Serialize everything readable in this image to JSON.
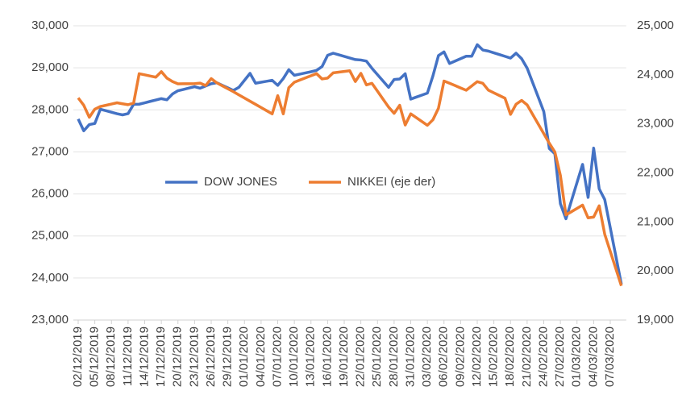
{
  "chart_data": {
    "type": "line",
    "categories": [
      "02/12/2019",
      null,
      null,
      "05/12/2019",
      null,
      null,
      "08/12/2019",
      null,
      null,
      "11/12/2019",
      null,
      null,
      "14/12/2019",
      null,
      null,
      "17/12/2019",
      null,
      null,
      "20/12/2019",
      null,
      null,
      "23/12/2019",
      null,
      null,
      "26/12/2019",
      null,
      null,
      "29/12/2019",
      null,
      null,
      "01/01/2020",
      null,
      null,
      "04/01/2020",
      null,
      null,
      "07/01/2020",
      null,
      null,
      "10/01/2020",
      null,
      null,
      "13/01/2020",
      null,
      null,
      "16/01/2020",
      null,
      null,
      "19/01/2020",
      null,
      null,
      "22/01/2020",
      null,
      null,
      "25/01/2020",
      null,
      null,
      "28/01/2020",
      null,
      null,
      "31/01/2020",
      null,
      null,
      "03/02/2020",
      null,
      null,
      "06/02/2020",
      null,
      null,
      "09/02/2020",
      null,
      null,
      "12/02/2020",
      null,
      null,
      "15/02/2020",
      null,
      null,
      "18/02/2020",
      null,
      null,
      "21/02/2020",
      null,
      null,
      "24/02/2020",
      null,
      null,
      "27/02/2020",
      null,
      null,
      "01/03/2020",
      null,
      null,
      "04/03/2020",
      null,
      null,
      "07/03/2020",
      null,
      null
    ],
    "series": [
      {
        "name": "DOW JONES",
        "color": "#4472c4",
        "values": [
          27783,
          27502,
          27649,
          27677,
          28015,
          27980,
          27945,
          27909,
          27881,
          27911,
          28132,
          28135,
          28168,
          28202,
          28235,
          28267,
          28239,
          28376,
          28455,
          28487,
          28519,
          28551,
          28515,
          28568,
          28621,
          28645,
          28584,
          28523,
          28462,
          28538,
          28703,
          28868,
          28634,
          28657,
          28680,
          28703,
          28583,
          28745,
          28956,
          28823,
          28851,
          28879,
          28907,
          28940,
          29030,
          29297,
          29348,
          29310,
          29272,
          29234,
          29196,
          29186,
          29160,
          28989,
          28838,
          28686,
          28535,
          28723,
          28734,
          28859,
          28256,
          28304,
          28351,
          28399,
          28807,
          29291,
          29380,
          29103,
          29161,
          29218,
          29276,
          29276,
          29551,
          29424,
          29398,
          29357,
          29315,
          29274,
          29232,
          29348,
          29219,
          28992,
          28648,
          28305,
          27961,
          27081,
          26957,
          25766,
          25409,
          25840,
          26272,
          26703,
          25917,
          27091,
          26121,
          25865,
          25194,
          24522,
          23851
        ]
      },
      {
        "name": "NIKKEI (eje der)",
        "color": "#ed7d31",
        "axis": "y2",
        "values": [
          23529,
          23380,
          23135,
          23300,
          23354,
          23379,
          23405,
          23430,
          23410,
          23391,
          23424,
          24023,
          24000,
          23976,
          23952,
          24066,
          23934,
          23864,
          23816,
          23818,
          23819,
          23821,
          23830,
          23782,
          23924,
          23837,
          23777,
          23716,
          23656,
          23591,
          23527,
          23462,
          23398,
          23333,
          23269,
          23204,
          23575,
          23204,
          23739,
          23850,
          23894,
          23938,
          23981,
          24025,
          23916,
          23933,
          24041,
          24055,
          24069,
          24083,
          23864,
          24031,
          23795,
          23827,
          23666,
          23504,
          23343,
          23215,
          23379,
          22977,
          23205,
          23127,
          23049,
          22971,
          23084,
          23320,
          23873,
          23828,
          23781,
          23733,
          23686,
          23774,
          23861,
          23828,
          23688,
          23633,
          23578,
          23523,
          23194,
          23400,
          23479,
          23387,
          23192,
          22996,
          22801,
          22605,
          22426,
          21948,
          21143,
          21210,
          21277,
          21344,
          21083,
          21100,
          21329,
          20749,
          20399,
          20048,
          19698
        ]
      }
    ],
    "ylim": [
      23000,
      30000
    ],
    "yticks": [
      {
        "value": 23000,
        "label": "23,000"
      },
      {
        "value": 24000,
        "label": "24,000"
      },
      {
        "value": 25000,
        "label": "25,000"
      },
      {
        "value": 26000,
        "label": "26,000"
      },
      {
        "value": 27000,
        "label": "27,000"
      },
      {
        "value": 28000,
        "label": "28,000"
      },
      {
        "value": 29000,
        "label": "29,000"
      },
      {
        "value": 30000,
        "label": "30,000"
      }
    ],
    "y2lim": [
      19000,
      25000
    ],
    "y2ticks": [
      {
        "value": 19000,
        "label": "19,000"
      },
      {
        "value": 20000,
        "label": "20,000"
      },
      {
        "value": 21000,
        "label": "21,000"
      },
      {
        "value": 22000,
        "label": "22,000"
      },
      {
        "value": 23000,
        "label": "23,000"
      },
      {
        "value": 24000,
        "label": "24,000"
      },
      {
        "value": 25000,
        "label": "25,000"
      }
    ],
    "grid": true,
    "legend": "center"
  }
}
